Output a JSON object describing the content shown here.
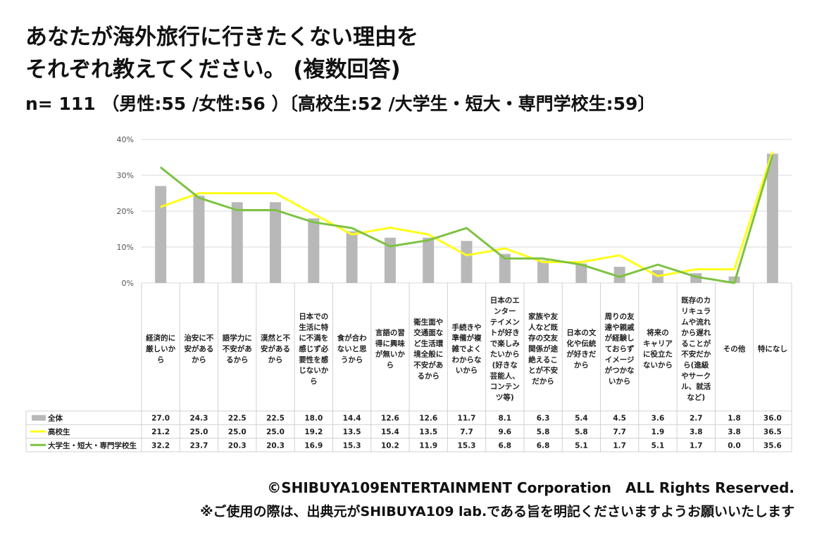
{
  "title_lines": [
    "あなたが海外旅行に行きたくない理由を",
    "それぞれ教えてください。 (複数回答)"
  ],
  "sample": "n= 111 （男性:55 /女性:56 ）〔高校生:52 /大学生・短大・専門学校生:59〕",
  "footer": {
    "copyright": "©SHIBUYA109ENTERTAINMENT Corporation　ALL Rights Reserved.",
    "note": "※ご使用の際は、出典元がSHIBUYA109 lab.である旨を明記くださいますようお願いいたします"
  },
  "chart_data": {
    "type": "bar",
    "ylim": [
      0,
      40
    ],
    "yticks": [
      "0%",
      "10%",
      "20%",
      "30%",
      "40%"
    ],
    "grid": true,
    "categories": [
      "経済的に厳しいから",
      "治安に不安があるから",
      "語学力に不安があるから",
      "漠然と不安があるから",
      "日本での生活に特に不満を感じず必要性を感じないから",
      "食が合わないと思うから",
      "言語の習得に興味が無いから",
      "衛生面や交通面など生活環境全般に不安があるから",
      "手続きや準備が複雑でよくわからないから",
      "日本のエンターテイメントが好きで楽しみたいから(好きな芸能人、コンテンツ等)",
      "家族や友人など既存の交友関係が途絶えることが不安だから",
      "日本の文化や伝統が好きだから",
      "周りの友達や親戚が経験しておらずイメージがつかないから",
      "将来のキャリアに役立たないから",
      "既存のカリキュラムや流れから遅れることが不安だから(進級やサークル、就活など)",
      "その他",
      "特になし"
    ],
    "category_lines": [
      [
        "経済的に",
        "厳しいか",
        "ら"
      ],
      [
        "治安に不",
        "安がある",
        "から"
      ],
      [
        "語学力に",
        "不安があ",
        "るから"
      ],
      [
        "漠然と不",
        "安がある",
        "から"
      ],
      [
        "日本での",
        "生活に特",
        "に不満を",
        "感じず必",
        "要性を感",
        "じないか",
        "ら"
      ],
      [
        "食が合わ",
        "ないと思",
        "うから"
      ],
      [
        "言語の習",
        "得に興味",
        "が無いか",
        "ら"
      ],
      [
        "衛生面や",
        "交通面な",
        "ど生活環",
        "境全般に",
        "不安があ",
        "るから"
      ],
      [
        "手続きや",
        "準備が複",
        "雑でよく",
        "わからな",
        "いから"
      ],
      [
        "日本のエ",
        "ンター",
        "テイメン",
        "トが好き",
        "で楽しみ",
        "たいから",
        "(好きな",
        "芸能人、",
        "コンテン",
        "ツ等)"
      ],
      [
        "家族や友",
        "人など既",
        "存の交友",
        "関係が途",
        "絶えるこ",
        "とが不安",
        "だから"
      ],
      [
        "日本の文",
        "化や伝統",
        "が好きだ",
        "から"
      ],
      [
        "周りの友",
        "達や親戚",
        "が経験し",
        "ておらず",
        "イメージ",
        "がつかな",
        "いから"
      ],
      [
        "将来の",
        "キャリア",
        "に役立た",
        "ないから"
      ],
      [
        "既存のカ",
        "リキュラ",
        "ムや流れ",
        "から遅れ",
        "ることが",
        "不安だか",
        "ら(進級",
        "やサーク",
        "ル、就活",
        "など)"
      ],
      [
        "その他"
      ],
      [
        "特になし"
      ]
    ],
    "series": [
      {
        "name": "全体",
        "type": "bar",
        "color": "#b8b8b8",
        "values": [
          27.0,
          24.3,
          22.5,
          22.5,
          18.0,
          14.4,
          12.6,
          12.6,
          11.7,
          8.1,
          6.3,
          5.4,
          4.5,
          3.6,
          2.7,
          1.8,
          36.0
        ]
      },
      {
        "name": "高校生",
        "type": "line",
        "color": "#ffff1a",
        "values": [
          21.2,
          25.0,
          25.0,
          25.0,
          19.2,
          13.5,
          15.4,
          13.5,
          7.7,
          9.6,
          5.8,
          5.8,
          7.7,
          1.9,
          3.8,
          3.8,
          36.5
        ]
      },
      {
        "name": "大学生・短大・専門学校生",
        "type": "line",
        "color": "#7dc242",
        "values": [
          32.2,
          23.7,
          20.3,
          20.3,
          16.9,
          15.3,
          10.2,
          11.9,
          15.3,
          6.8,
          6.8,
          5.1,
          1.7,
          5.1,
          1.7,
          0.0,
          35.6
        ]
      }
    ]
  }
}
